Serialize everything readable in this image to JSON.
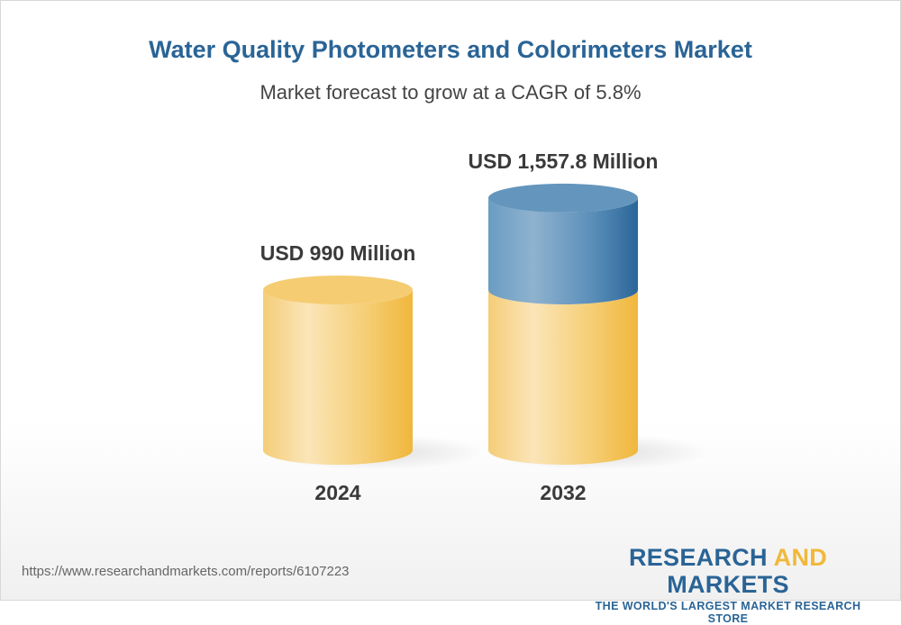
{
  "title": "Water Quality Photometers and Colorimeters Market",
  "subtitle": "Market forecast to grow at a CAGR of 5.8%",
  "chart_data": {
    "type": "bar",
    "style": "3d-cylinder",
    "categories": [
      "2024",
      "2032"
    ],
    "values": [
      990,
      1557.8
    ],
    "unit": "USD Million",
    "data_labels": [
      "USD 990 Million",
      "USD 1,557.8 Million"
    ],
    "colors": {
      "base": "#f1b83a",
      "growth": "#2a6496"
    },
    "grid": false
  },
  "footer": {
    "url": "https://www.researchandmarkets.com/reports/6107223",
    "logo_part1": "RESEARCH ",
    "logo_part2": "AND",
    "logo_part3": " MARKETS",
    "logo_tagline": "THE WORLD'S LARGEST MARKET RESEARCH STORE"
  }
}
